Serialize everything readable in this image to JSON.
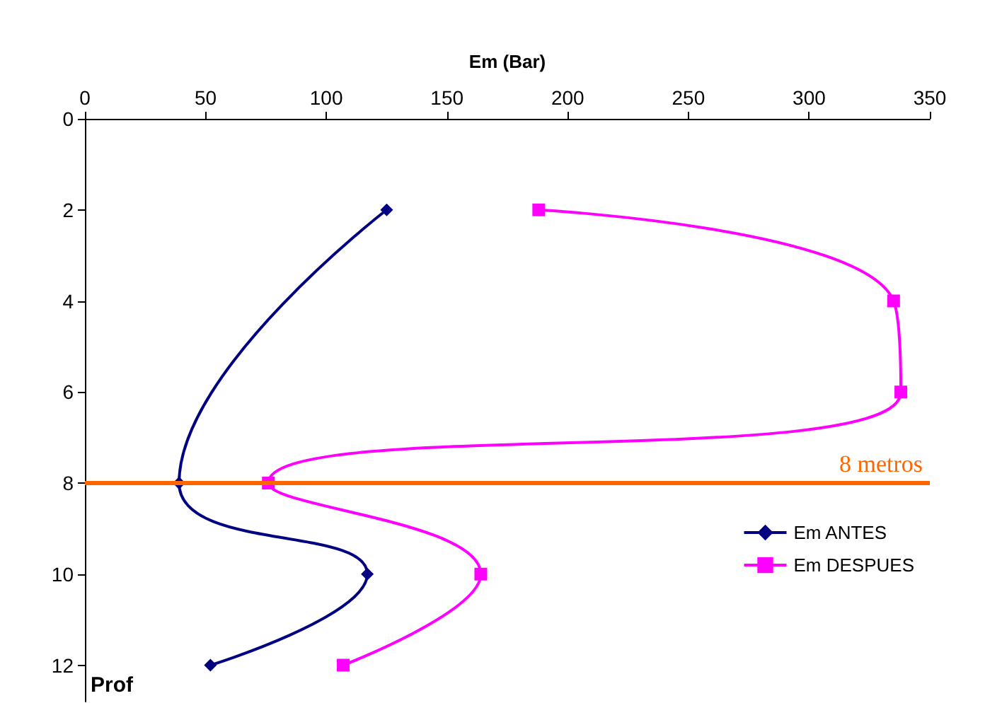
{
  "chart_data": {
    "type": "line",
    "xlabel": "Em (Bar)",
    "ylabel": "Prof",
    "xlim": [
      0,
      350
    ],
    "xticks": [
      0,
      50,
      100,
      150,
      200,
      250,
      300,
      350
    ],
    "ylim": [
      12.8,
      0
    ],
    "yticks": [
      0,
      2,
      4,
      6,
      8,
      10,
      12
    ],
    "series": [
      {
        "name": "Em ANTES",
        "color": "#000080",
        "marker": "diamond",
        "x": [
          125,
          39,
          117,
          52
        ],
        "values": [
          2,
          8,
          10,
          12
        ]
      },
      {
        "name": "Em DESPUES",
        "color": "#ff00ff",
        "marker": "square",
        "x": [
          188,
          335,
          338,
          76,
          164,
          107
        ],
        "values": [
          2,
          4,
          6,
          8,
          10,
          12
        ]
      }
    ],
    "ref_lines": [
      {
        "axis": "y",
        "value": 8,
        "label": "8 metros",
        "color": "#ff6600"
      }
    ],
    "legend": "bottom right",
    "grid": false
  }
}
